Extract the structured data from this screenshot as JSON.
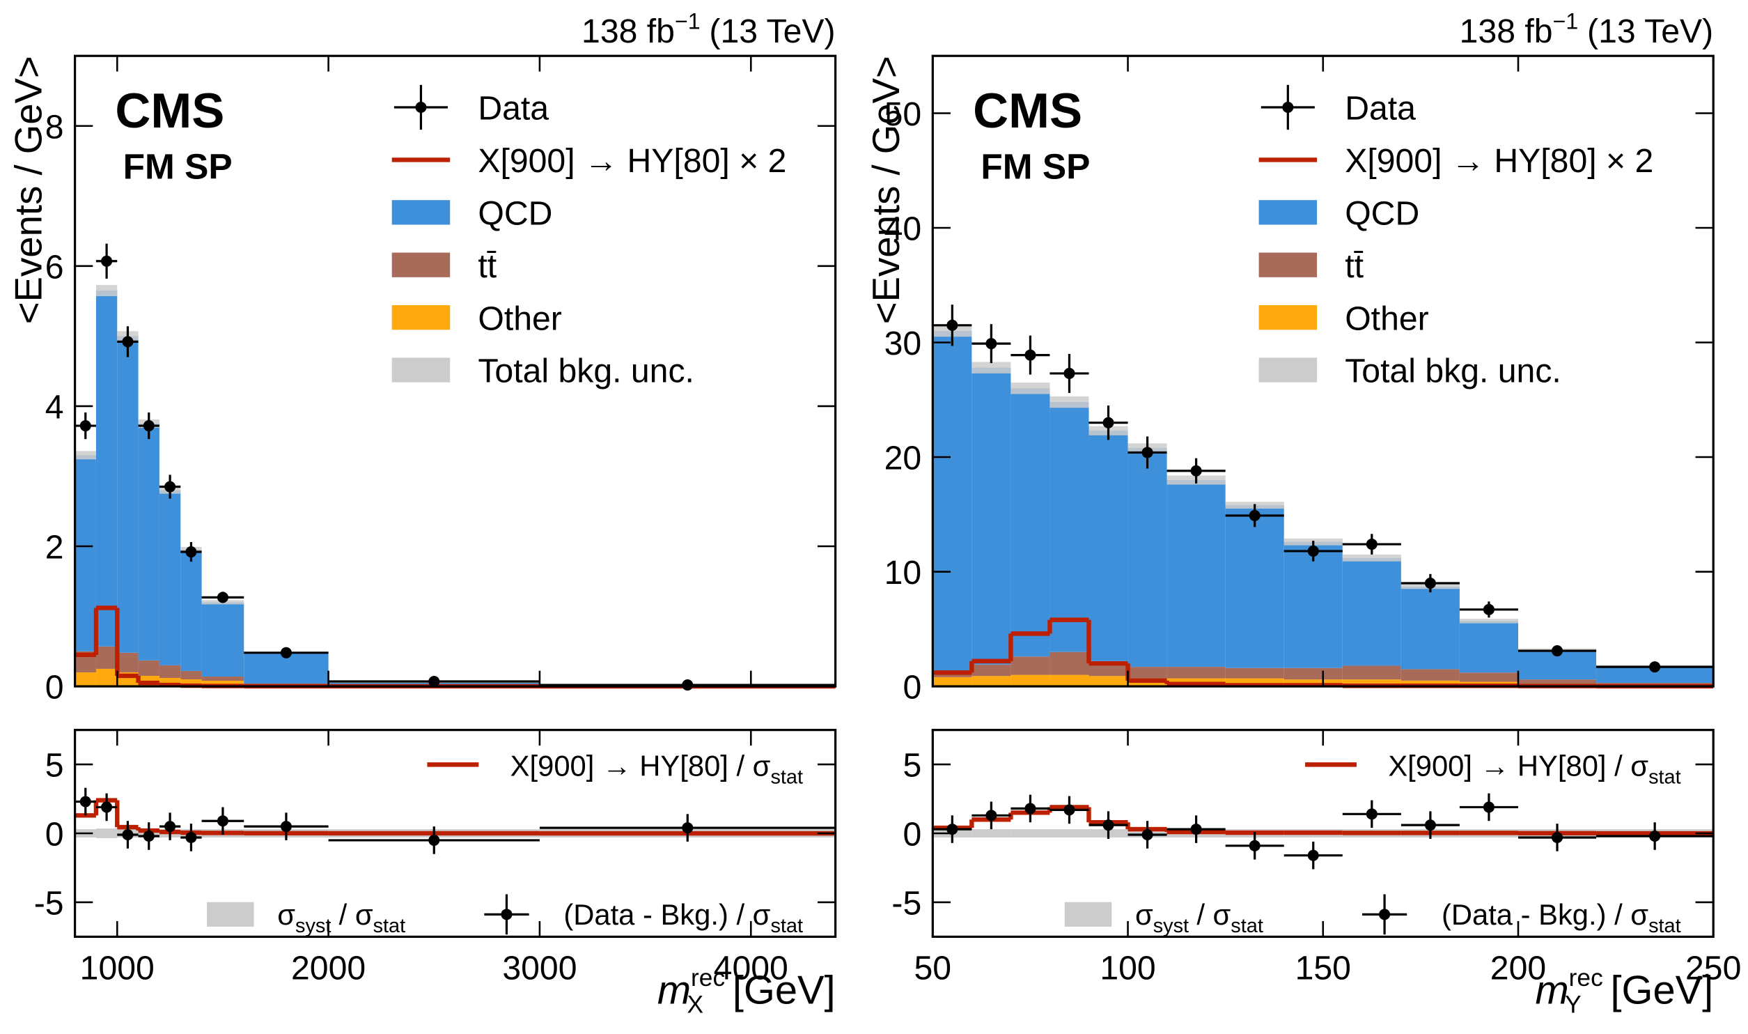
{
  "chart_data": [
    {
      "type": "stacked_histogram",
      "lumi": {
        "text": "138 fb",
        "sup": "−1",
        "energy": "(13 TeV)"
      },
      "label": "CMS",
      "sublabel": "FM SP",
      "y_label": "<Events / GeV>",
      "x_label": {
        "base": "m",
        "sup": "rec",
        "sub": "X",
        "unit": "[GeV]"
      },
      "bins": [
        800,
        900,
        1000,
        1100,
        1200,
        1300,
        1400,
        1600,
        2000,
        3000,
        4400
      ],
      "xlim": [
        800,
        4400
      ],
      "xticks": [
        1000,
        2000,
        3000,
        4000
      ],
      "ylim": [
        0,
        9
      ],
      "yticks": [
        0,
        2,
        4,
        6,
        8
      ],
      "series": [
        {
          "name": "Other",
          "color": "#ffa90e",
          "values": [
            0.2,
            0.25,
            0.2,
            0.15,
            0.12,
            0.1,
            0.08,
            0.02,
            0.005,
            0.002
          ]
        },
        {
          "name": "tt̄",
          "color": "#a96b59",
          "values": [
            0.3,
            0.32,
            0.28,
            0.22,
            0.18,
            0.12,
            0.06,
            0.02,
            0.005,
            0.002
          ]
        },
        {
          "name": "QCD",
          "color": "#3f90da",
          "values": [
            2.8,
            5.08,
            4.52,
            3.38,
            2.5,
            1.73,
            1.06,
            0.44,
            0.06,
            0.016
          ]
        }
      ],
      "band": {
        "name": "Total bkg. unc.",
        "color": "#cccccc",
        "values": [
          0.06,
          0.08,
          0.07,
          0.06,
          0.05,
          0.04,
          0.03,
          0.01,
          0.003,
          0.001
        ]
      },
      "signal": {
        "name": "X[900] → HY[80] × 2",
        "color": "#bd1f01",
        "values": [
          0.45,
          1.12,
          0.15,
          0.05,
          0.02,
          0.01,
          0.005,
          0.002,
          0.001,
          0
        ]
      },
      "data": {
        "name": "Data",
        "values": [
          3.72,
          6.07,
          4.92,
          3.72,
          2.85,
          1.92,
          1.27,
          0.48,
          0.07,
          0.02
        ],
        "errors": [
          0.19,
          0.25,
          0.22,
          0.19,
          0.17,
          0.14,
          0.08,
          0.04,
          0.008,
          0.004
        ]
      },
      "ratio": {
        "ylim": [
          -7.5,
          7.5
        ],
        "yticks": [
          -5,
          0,
          5
        ],
        "signal": {
          "name": "X[900] → HY[80] / σ",
          "sub": "stat",
          "values": [
            1.3,
            2.4,
            0.45,
            0.2,
            0.1,
            0.05,
            0.03,
            0.01,
            0.005,
            0
          ]
        },
        "syst": {
          "name": "σ",
          "sub": "syst",
          "tail": "/ σ",
          "tail_sub": "stat",
          "values": [
            0.3,
            0.35,
            0.3,
            0.3,
            0.3,
            0.3,
            0.3,
            0.3,
            0.3,
            0.3
          ]
        },
        "data": {
          "name": "(Data - Bkg.) / σ",
          "sub": "stat",
          "values": [
            2.3,
            1.9,
            -0.1,
            -0.2,
            0.5,
            -0.3,
            0.9,
            0.5,
            -0.5,
            0.4
          ],
          "errors": [
            1,
            1,
            1,
            1,
            1,
            1,
            1,
            1,
            1,
            1
          ]
        }
      }
    },
    {
      "type": "stacked_histogram",
      "lumi": {
        "text": "138 fb",
        "sup": "−1",
        "energy": "(13 TeV)"
      },
      "label": "CMS",
      "sublabel": "FM SP",
      "y_label": "<Events / GeV>",
      "x_label": {
        "base": "m",
        "sup": "rec",
        "sub": "Y",
        "unit": "[GeV]"
      },
      "bins": [
        50,
        60,
        70,
        80,
        90,
        100,
        110,
        125,
        140,
        155,
        170,
        185,
        200,
        220,
        250
      ],
      "xlim": [
        50,
        250
      ],
      "xticks": [
        50,
        100,
        150,
        200,
        250
      ],
      "ylim": [
        0,
        55
      ],
      "yticks": [
        0,
        10,
        20,
        30,
        40,
        50
      ],
      "series": [
        {
          "name": "Other",
          "color": "#ffa90e",
          "values": [
            0.8,
            0.9,
            1.0,
            1.0,
            0.9,
            0.7,
            0.7,
            0.7,
            0.6,
            0.6,
            0.5,
            0.4,
            0.2,
            0.1
          ]
        },
        {
          "name": "tt̄",
          "color": "#a96b59",
          "values": [
            0.6,
            1.0,
            1.6,
            2.0,
            1.3,
            1.0,
            1.0,
            0.9,
            1.0,
            1.2,
            1.0,
            0.8,
            0.4,
            0.2
          ]
        },
        {
          "name": "QCD",
          "color": "#3f90da",
          "values": [
            29.6,
            25.9,
            23.4,
            21.8,
            20.1,
            19.1,
            16.3,
            14.2,
            11.0,
            9.4,
            7.2,
            4.5,
            2.6,
            1.5
          ]
        }
      ],
      "band": {
        "name": "Total bkg. unc.",
        "color": "#cccccc",
        "values": [
          0.5,
          0.5,
          0.5,
          0.5,
          0.4,
          0.4,
          0.4,
          0.3,
          0.3,
          0.3,
          0.2,
          0.2,
          0.1,
          0.05
        ]
      },
      "signal": {
        "name": "X[900] → HY[80] × 2",
        "color": "#bd1f01",
        "values": [
          1.2,
          2.2,
          4.6,
          5.8,
          2.0,
          0.5,
          0.2,
          0.1,
          0.1,
          0.05,
          0.05,
          0.05,
          0.02,
          0.01
        ]
      },
      "data": {
        "name": "Data",
        "values": [
          31.5,
          29.9,
          28.9,
          27.3,
          23.0,
          20.4,
          18.8,
          14.9,
          11.8,
          12.4,
          9.0,
          6.7,
          3.1,
          1.7
        ],
        "errors": [
          1.8,
          1.7,
          1.7,
          1.7,
          1.5,
          1.4,
          1.1,
          1.0,
          0.9,
          0.9,
          0.8,
          0.7,
          0.4,
          0.25
        ]
      },
      "ratio": {
        "ylim": [
          -7.5,
          7.5
        ],
        "yticks": [
          -5,
          0,
          5
        ],
        "signal": {
          "name": "X[900] → HY[80] / σ",
          "sub": "stat",
          "values": [
            0.4,
            1.0,
            1.5,
            1.9,
            0.8,
            0.3,
            0.1,
            0.05,
            0.05,
            0.03,
            0.03,
            0.03,
            0.01,
            0
          ]
        },
        "syst": {
          "name": "σ",
          "sub": "syst",
          "tail": "/ σ",
          "tail_sub": "stat",
          "values": [
            0.3,
            0.3,
            0.3,
            0.3,
            0.3,
            0.3,
            0.3,
            0.3,
            0.3,
            0.3,
            0.3,
            0.3,
            0.3,
            0.3
          ]
        },
        "data": {
          "name": "(Data - Bkg.) / σ",
          "sub": "stat",
          "values": [
            0.3,
            1.3,
            1.8,
            1.7,
            0.6,
            -0.1,
            0.3,
            -0.9,
            -1.6,
            1.4,
            0.6,
            1.9,
            -0.3,
            -0.2
          ],
          "errors": [
            1,
            1,
            1,
            1,
            1,
            1,
            1,
            1,
            1,
            1,
            1,
            1,
            1,
            1
          ]
        }
      }
    }
  ]
}
